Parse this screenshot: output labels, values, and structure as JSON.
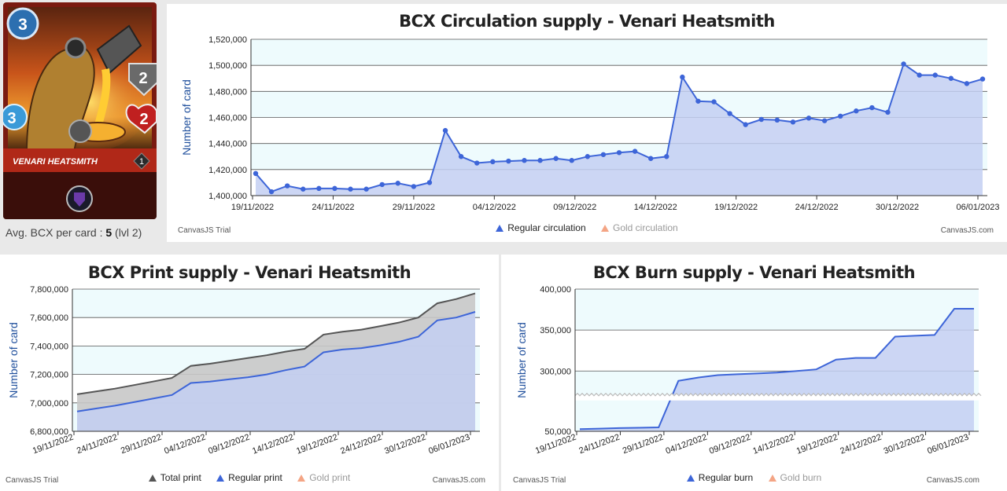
{
  "card": {
    "name": "VENARI HEATSMITH",
    "mana": "3",
    "armor": "2",
    "health": "2",
    "attack": "3",
    "level": "1",
    "avg_label": "Avg. BCX per card : ",
    "avg_value": "5",
    "avg_level": " (lvl 2)"
  },
  "colors": {
    "regular": "#3d65d8",
    "regular_fill": "#c3cff2",
    "total": "#555555",
    "total_fill": "#c8c8c8",
    "gold": "#f4a585",
    "bg_band": "#eefbfd"
  },
  "credits": {
    "left": "CanvasJS Trial",
    "right": "CanvasJS.com"
  },
  "chart_data": [
    {
      "type": "area",
      "title": "BCX Circulation supply - Venari Heatsmith",
      "ylabel": "Number of card",
      "ylim": [
        1400000,
        1520000
      ],
      "yticks": [
        "1,400,000",
        "1,420,000",
        "1,440,000",
        "1,460,000",
        "1,480,000",
        "1,500,000",
        "1,520,000"
      ],
      "xticks": [
        "19/11/2022",
        "24/11/2022",
        "29/11/2022",
        "04/12/2022",
        "09/12/2022",
        "14/12/2022",
        "19/12/2022",
        "24/12/2022",
        "30/12/2022",
        "06/01/2023"
      ],
      "x_start": "19/11/2022",
      "x_end": "07/01/2023",
      "legend": [
        "Regular circulation",
        "Gold circulation"
      ],
      "series": [
        {
          "name": "Regular circulation",
          "markers": true,
          "values": [
            1417000,
            1403000,
            1407500,
            1405000,
            1405500,
            1405500,
            1405000,
            1405000,
            1408500,
            1409500,
            1407000,
            1410000,
            1450000,
            1430000,
            1425000,
            1426000,
            1426500,
            1427000,
            1427000,
            1428500,
            1427000,
            1430000,
            1431500,
            1433000,
            1434000,
            1428500,
            1430000,
            1491000,
            1472500,
            1472000,
            1463000,
            1454500,
            1458500,
            1458000,
            1456500,
            1459500,
            1457500,
            1461000,
            1465000,
            1467500,
            1464000,
            1501000,
            1492500,
            1492500,
            1490000,
            1486000,
            1489500
          ]
        }
      ]
    },
    {
      "type": "area",
      "title": "BCX Print supply - Venari Heatsmith",
      "ylabel": "Number of card",
      "ylim": [
        6800000,
        7800000
      ],
      "yticks": [
        "6,800,000",
        "7,000,000",
        "7,200,000",
        "7,400,000",
        "7,600,000",
        "7,800,000"
      ],
      "xticks": [
        "19/11/2022",
        "24/11/2022",
        "29/11/2022",
        "04/12/2022",
        "09/12/2022",
        "14/12/2022",
        "19/12/2022",
        "24/12/2022",
        "30/12/2022",
        "06/01/2023"
      ],
      "legend": [
        "Total print",
        "Regular print",
        "Gold print"
      ],
      "series": [
        {
          "name": "Total print",
          "values": [
            7060000,
            7080000,
            7100000,
            7125000,
            7150000,
            7175000,
            7260000,
            7275000,
            7295000,
            7315000,
            7335000,
            7360000,
            7380000,
            7480000,
            7500000,
            7515000,
            7540000,
            7565000,
            7600000,
            7700000,
            7730000,
            7770000
          ]
        },
        {
          "name": "Regular print",
          "values": [
            6940000,
            6960000,
            6980000,
            7005000,
            7030000,
            7055000,
            7140000,
            7150000,
            7165000,
            7180000,
            7200000,
            7230000,
            7255000,
            7355000,
            7375000,
            7385000,
            7405000,
            7430000,
            7465000,
            7580000,
            7600000,
            7640000
          ]
        }
      ]
    },
    {
      "type": "area",
      "title": "BCX Burn supply - Venari Heatsmith",
      "ylabel": "Number of card",
      "ylim": [
        50000,
        400000
      ],
      "axis_break": true,
      "yticks": [
        "50,000",
        "300,000",
        "350,000",
        "400,000"
      ],
      "xticks": [
        "19/11/2022",
        "24/11/2022",
        "29/11/2022",
        "04/12/2022",
        "09/12/2022",
        "14/12/2022",
        "19/12/2022",
        "24/12/2022",
        "30/12/2022",
        "06/01/2023"
      ],
      "legend": [
        "Regular burn",
        "Gold burn"
      ],
      "series": [
        {
          "name": "Regular burn",
          "values": [
            62000,
            65000,
            68000,
            70000,
            72000,
            288000,
            292000,
            295000,
            296000,
            297000,
            298000,
            300000,
            302000,
            314000,
            316000,
            316000,
            342000,
            343000,
            344000,
            376000,
            376000
          ]
        }
      ]
    }
  ]
}
